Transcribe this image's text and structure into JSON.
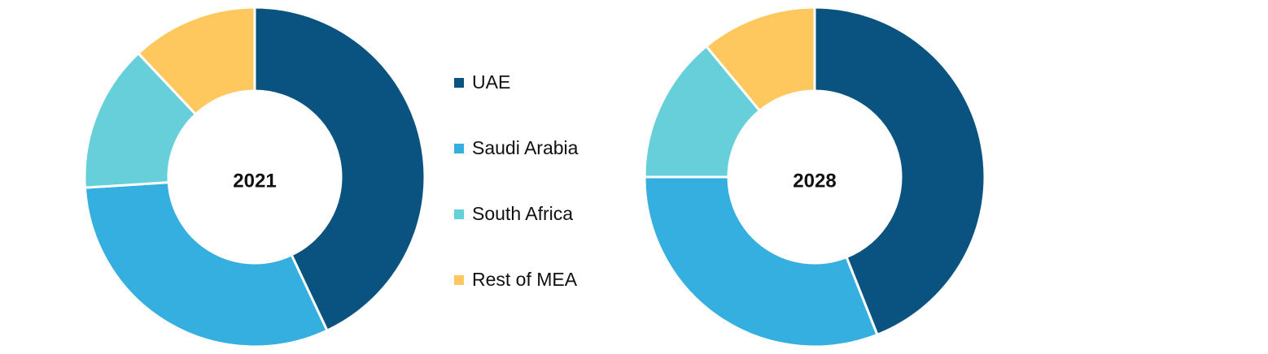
{
  "chart_data": [
    {
      "type": "donut",
      "title": "2021",
      "categories": [
        "UAE",
        "Saudi Arabia",
        "South Africa",
        "Rest of MEA"
      ],
      "values": [
        43,
        31,
        14,
        12
      ],
      "colors": [
        "#0a527f",
        "#35afe0",
        "#67cfd9",
        "#fec85f"
      ]
    },
    {
      "type": "donut",
      "title": "2028",
      "categories": [
        "UAE",
        "Saudi Arabia",
        "South Africa",
        "Rest of MEA"
      ],
      "values": [
        44,
        31,
        14,
        11
      ],
      "colors": [
        "#0a527f",
        "#35afe0",
        "#67cfd9",
        "#fec85f"
      ]
    }
  ]
}
